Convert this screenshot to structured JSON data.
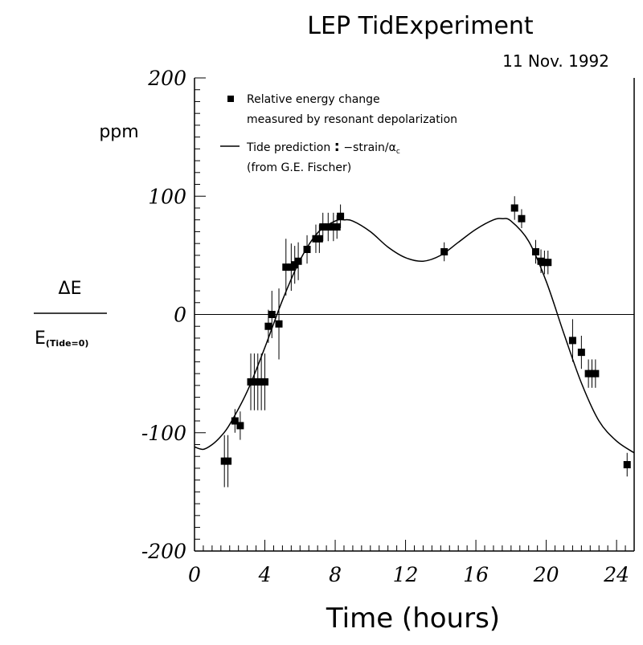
{
  "chart_data": {
    "type": "scatter",
    "title": "LEP TidExperiment",
    "date": "11 Nov. 1992",
    "xlabel": "Time (hours)",
    "ylabel_unit": "ppm",
    "ylabel_numerator": "ΔE",
    "ylabel_denominator_main": "E",
    "ylabel_denominator_sub": "(Tide=0)",
    "xlim": [
      0,
      25
    ],
    "ylim": [
      -200,
      200
    ],
    "xticks": [
      0,
      4,
      8,
      12,
      16,
      20,
      24
    ],
    "yticks": [
      -200,
      -100,
      0,
      100,
      200
    ],
    "zero_line": true,
    "legend_position": "top-left",
    "legend": {
      "points_line1": "Relative energy change",
      "points_line2": "measured by resonant depolarization",
      "curve_prefix": "Tide prediction",
      "curve_sep": ":",
      "curve_formula": "−strain/α",
      "curve_formula_sub": "c",
      "curve_line2": "(from G.E. Fischer)"
    },
    "series": [
      {
        "type": "points",
        "points": [
          {
            "x": 1.7,
            "y": -124,
            "err": 22
          },
          {
            "x": 1.9,
            "y": -124,
            "err": 22
          },
          {
            "x": 2.3,
            "y": -90,
            "err": 10
          },
          {
            "x": 2.6,
            "y": -94,
            "err": 12
          },
          {
            "x": 3.2,
            "y": -57,
            "err": 24
          },
          {
            "x": 3.4,
            "y": -57,
            "err": 24
          },
          {
            "x": 3.6,
            "y": -57,
            "err": 24
          },
          {
            "x": 3.8,
            "y": -57,
            "err": 24
          },
          {
            "x": 4.0,
            "y": -57,
            "err": 24
          },
          {
            "x": 4.2,
            "y": -10,
            "err": 14
          },
          {
            "x": 4.4,
            "y": 0,
            "err": 20
          },
          {
            "x": 4.8,
            "y": -8,
            "err": 30
          },
          {
            "x": 5.2,
            "y": 40,
            "err": 24
          },
          {
            "x": 5.5,
            "y": 40,
            "err": 20
          },
          {
            "x": 5.7,
            "y": 42,
            "err": 16
          },
          {
            "x": 5.9,
            "y": 45,
            "err": 16
          },
          {
            "x": 6.4,
            "y": 55,
            "err": 12
          },
          {
            "x": 6.9,
            "y": 64,
            "err": 12
          },
          {
            "x": 7.1,
            "y": 64,
            "err": 12
          },
          {
            "x": 7.3,
            "y": 74,
            "err": 12
          },
          {
            "x": 7.6,
            "y": 74,
            "err": 12
          },
          {
            "x": 7.9,
            "y": 74,
            "err": 12
          },
          {
            "x": 8.1,
            "y": 74,
            "err": 10
          },
          {
            "x": 8.3,
            "y": 83,
            "err": 10
          },
          {
            "x": 14.2,
            "y": 53,
            "err": 8
          },
          {
            "x": 18.2,
            "y": 90,
            "err": 10
          },
          {
            "x": 18.6,
            "y": 81,
            "err": 8
          },
          {
            "x": 19.4,
            "y": 53,
            "err": 10
          },
          {
            "x": 19.7,
            "y": 45,
            "err": 10
          },
          {
            "x": 19.9,
            "y": 44,
            "err": 10
          },
          {
            "x": 20.1,
            "y": 44,
            "err": 10
          },
          {
            "x": 21.5,
            "y": -22,
            "err": 18
          },
          {
            "x": 22.0,
            "y": -32,
            "err": 14
          },
          {
            "x": 22.4,
            "y": -50,
            "err": 12
          },
          {
            "x": 22.6,
            "y": -50,
            "err": 12
          },
          {
            "x": 22.8,
            "y": -50,
            "err": 12
          },
          {
            "x": 24.6,
            "y": -127,
            "err": 10
          }
        ]
      },
      {
        "type": "line",
        "x": [
          0,
          0.5,
          1,
          1.5,
          2,
          3,
          4,
          5,
          6,
          7,
          8,
          8.5,
          9,
          10,
          11,
          12,
          13,
          14,
          15,
          16,
          17,
          17.5,
          18,
          19,
          20,
          21,
          22,
          23,
          24,
          25
        ],
        "y": [
          -112,
          -114,
          -110,
          -103,
          -93,
          -65,
          -28,
          12,
          46,
          69,
          79,
          80,
          79,
          70,
          57,
          48,
          45,
          50,
          61,
          72,
          80,
          81,
          79,
          62,
          28,
          -16,
          -58,
          -90,
          -107,
          -117
        ]
      }
    ]
  }
}
